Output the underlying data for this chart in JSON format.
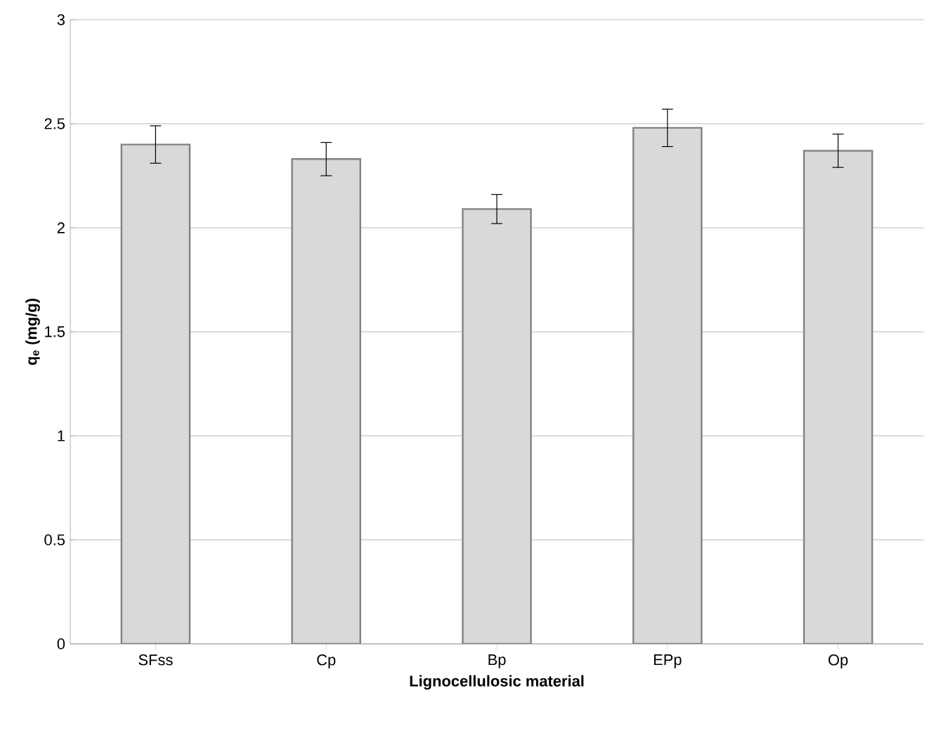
{
  "chart_data": {
    "type": "bar",
    "xlabel": "Lignocellulosic material",
    "ylabel": "q$_{e}$ (mg/g)",
    "categories": [
      "SFss",
      "Cp",
      "Bp",
      "EPp",
      "Op"
    ],
    "values": [
      2.4,
      2.33,
      2.09,
      2.48,
      2.37
    ],
    "errors": [
      0.09,
      0.08,
      0.07,
      0.09,
      0.08
    ],
    "color": "#d9d9d9",
    "ylim": [
      0,
      3
    ],
    "yticks": [
      0,
      0.5,
      1,
      1.5,
      2,
      2.5,
      3
    ],
    "grid": "y"
  }
}
